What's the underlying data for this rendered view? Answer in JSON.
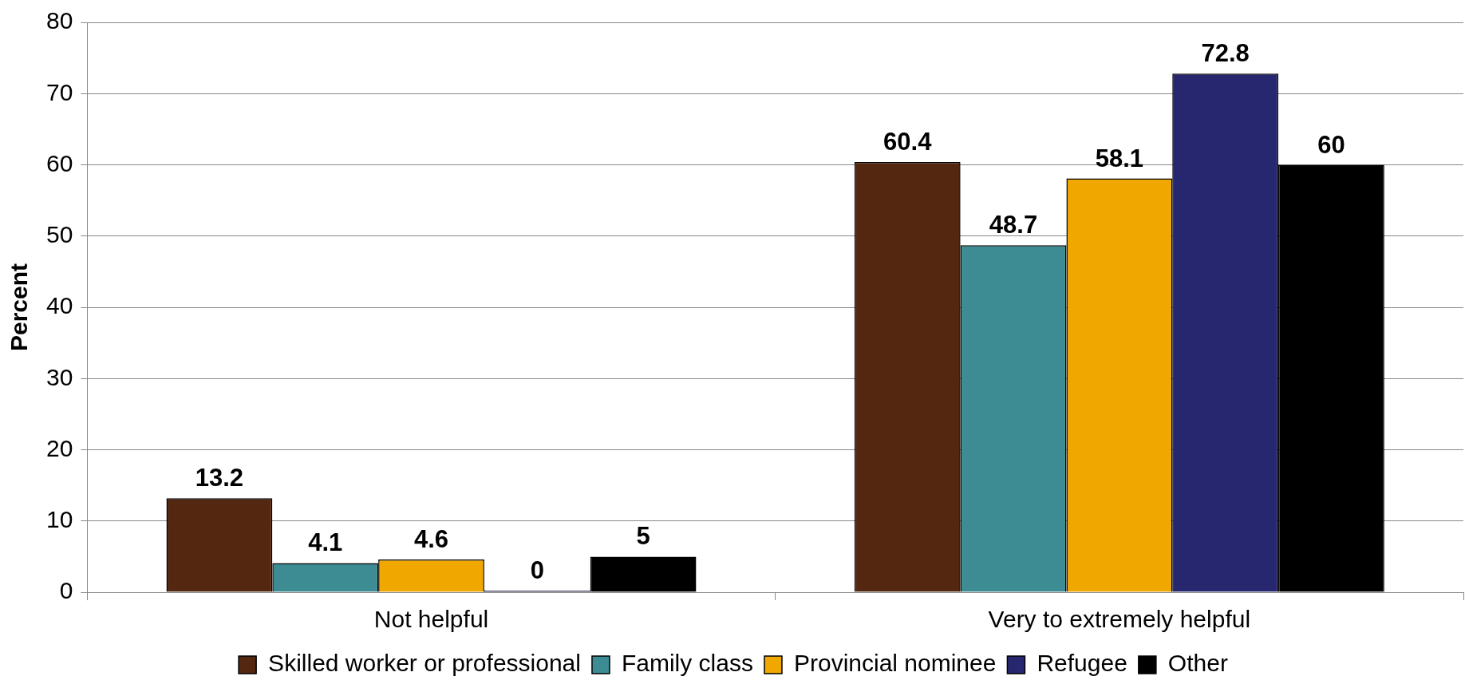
{
  "chart_data": {
    "type": "bar",
    "ylabel": "Percent",
    "categories": [
      "Not helpful",
      "Very to extremely helpful"
    ],
    "series": [
      {
        "name": "Skilled worker or professional",
        "color": "#542711",
        "values": [
          13.2,
          60.4
        ]
      },
      {
        "name": "Family class",
        "color": "#3d8c93",
        "values": [
          4.1,
          48.7
        ]
      },
      {
        "name": "Provincial nominee",
        "color": "#f0a800",
        "values": [
          4.6,
          58.1
        ]
      },
      {
        "name": "Refugee",
        "color": "#272770",
        "values": [
          0,
          72.8
        ]
      },
      {
        "name": "Other",
        "color": "#000000",
        "values": [
          5,
          60
        ]
      }
    ],
    "ylim": [
      0,
      80
    ],
    "yticks": [
      0,
      10,
      20,
      30,
      40,
      50,
      60,
      70,
      80
    ],
    "grid": "y",
    "legend": "bottom",
    "data_labels": true
  }
}
